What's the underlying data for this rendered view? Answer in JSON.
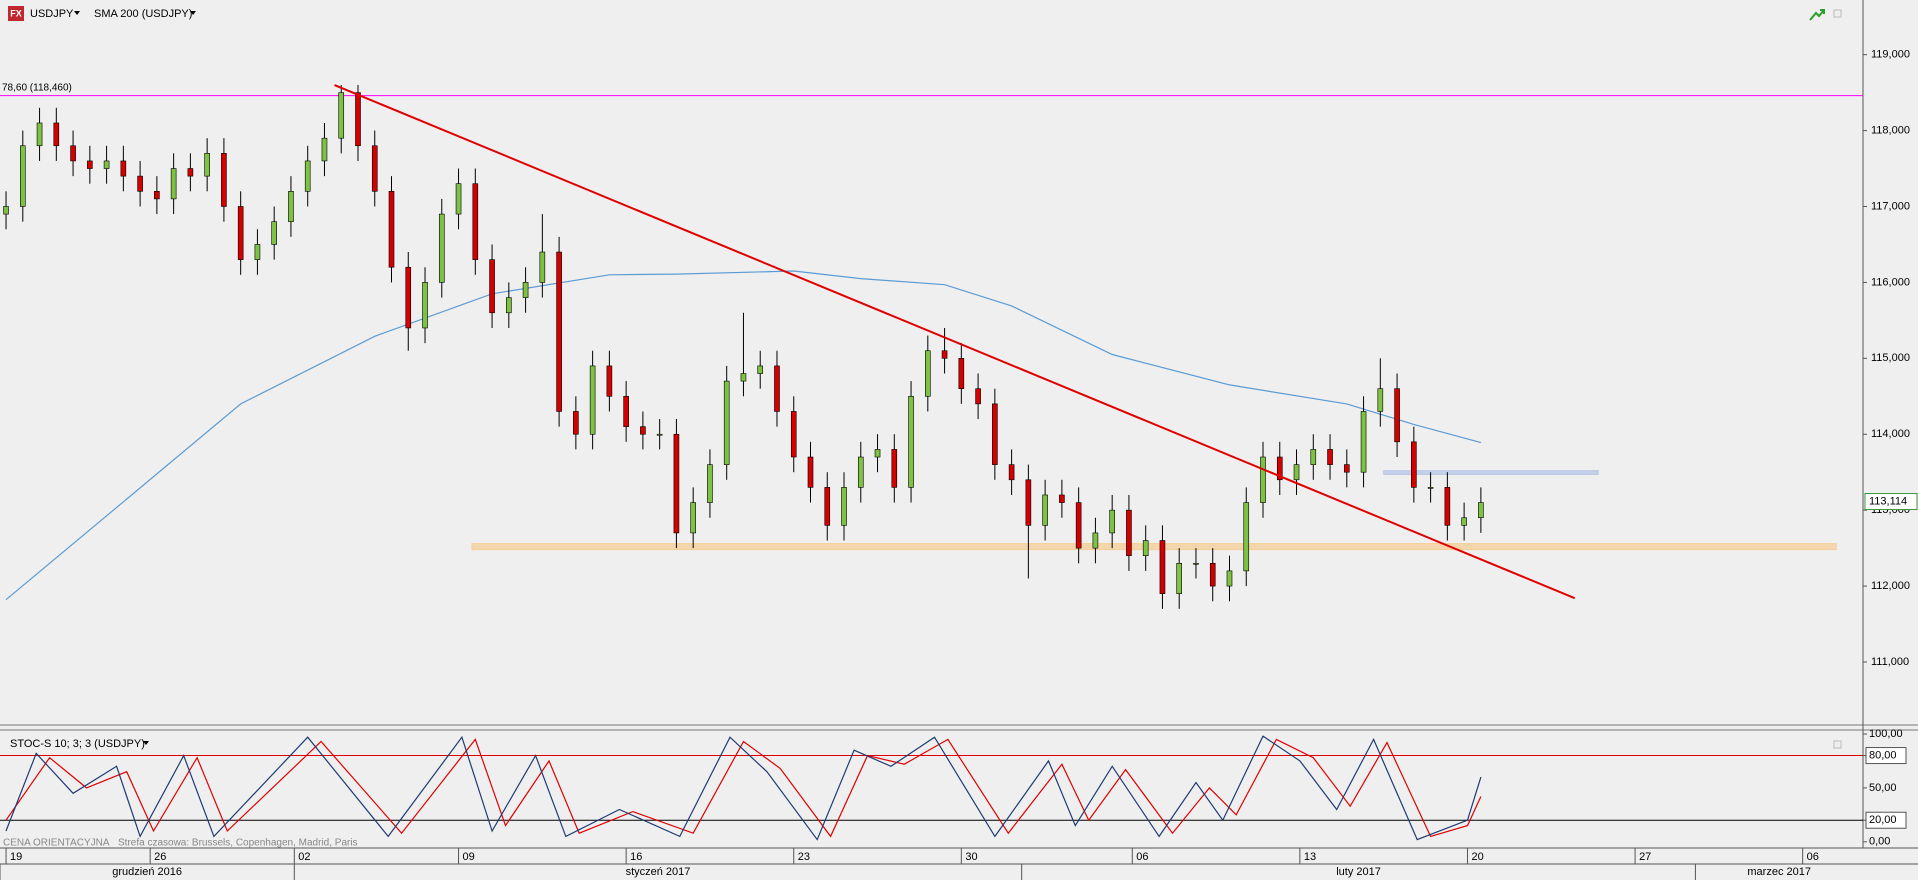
{
  "chart_data": [
    {
      "type": "candlestick",
      "title": "USDJPY",
      "x": [
        0,
        0.5,
        1,
        1.5,
        2,
        2.5,
        3,
        3.5,
        4,
        4.5,
        5,
        5.5,
        6,
        6.5,
        7,
        7.5,
        8,
        8.5,
        9,
        9.5,
        10,
        10.5,
        11,
        11.5,
        12,
        12.5,
        13,
        13.5,
        14,
        14.5,
        15,
        15.5,
        16,
        16.5,
        17,
        17.5,
        18,
        18.5,
        19,
        19.5,
        20,
        20.5,
        21,
        21.5,
        22,
        22.5,
        23,
        23.5,
        24,
        24.5,
        25,
        25.5,
        26,
        26.5,
        27,
        27.5,
        28,
        28.5,
        29,
        29.5,
        30,
        30.5,
        31,
        31.5,
        32,
        32.5,
        33,
        33.5,
        34,
        34.5,
        35,
        35.5,
        36,
        36.5,
        37,
        37.5,
        38,
        38.5,
        39,
        39.5,
        40,
        40.5,
        41,
        41.5,
        42,
        42.5,
        43,
        43.5,
        44
      ],
      "open": [
        116.9,
        117.0,
        117.8,
        118.1,
        117.8,
        117.6,
        117.5,
        117.6,
        117.4,
        117.2,
        117.1,
        117.5,
        117.4,
        117.7,
        117.0,
        116.3,
        116.5,
        116.8,
        117.2,
        117.6,
        117.9,
        118.5,
        117.8,
        117.2,
        116.2,
        115.4,
        116.0,
        116.9,
        117.3,
        116.3,
        115.6,
        115.8,
        116.0,
        116.4,
        114.3,
        114.0,
        114.9,
        114.5,
        114.1,
        114.0,
        114.0,
        112.7,
        113.1,
        113.6,
        114.7,
        114.8,
        114.9,
        114.3,
        113.7,
        113.3,
        112.8,
        113.3,
        113.7,
        113.8,
        113.3,
        114.5,
        115.1,
        115.0,
        114.6,
        114.4,
        113.6,
        113.4,
        112.8,
        113.2,
        113.1,
        112.5,
        112.7,
        113.0,
        112.4,
        112.6,
        111.9,
        112.3,
        112.3,
        112.0,
        112.2,
        113.1,
        113.7,
        113.4,
        113.6,
        113.8,
        113.6,
        113.5,
        114.3,
        114.6,
        113.9,
        113.3,
        113.3,
        112.8,
        112.9
      ],
      "high": [
        117.2,
        118.0,
        118.3,
        118.3,
        118.0,
        117.8,
        117.8,
        117.8,
        117.6,
        117.4,
        117.7,
        117.7,
        117.9,
        117.9,
        117.2,
        116.7,
        117.0,
        117.4,
        117.8,
        118.1,
        118.6,
        118.6,
        118.0,
        117.4,
        116.4,
        116.2,
        117.1,
        117.5,
        117.5,
        116.5,
        116.0,
        116.2,
        116.9,
        116.6,
        114.5,
        115.1,
        115.1,
        114.7,
        114.3,
        114.2,
        114.2,
        113.3,
        113.8,
        114.9,
        115.6,
        115.1,
        115.1,
        114.5,
        113.9,
        113.5,
        113.5,
        113.9,
        114.0,
        114.0,
        114.7,
        115.3,
        115.4,
        115.2,
        114.8,
        114.6,
        113.8,
        113.6,
        113.4,
        113.4,
        113.3,
        112.9,
        113.2,
        113.2,
        112.8,
        112.8,
        112.5,
        112.5,
        112.5,
        112.4,
        113.3,
        113.9,
        113.9,
        113.8,
        114.0,
        114.0,
        113.8,
        114.5,
        115.0,
        114.8,
        114.1,
        113.5,
        113.5,
        113.1,
        113.3
      ],
      "low": [
        116.7,
        116.8,
        117.6,
        117.6,
        117.4,
        117.3,
        117.3,
        117.2,
        117.0,
        116.9,
        116.9,
        117.2,
        117.2,
        116.8,
        116.1,
        116.1,
        116.3,
        116.6,
        117.0,
        117.4,
        117.7,
        117.6,
        117.0,
        116.0,
        115.1,
        115.2,
        115.8,
        116.7,
        116.1,
        115.4,
        115.4,
        115.6,
        115.8,
        114.1,
        113.8,
        113.8,
        114.3,
        113.9,
        113.8,
        113.8,
        112.5,
        112.5,
        112.9,
        113.4,
        114.5,
        114.6,
        114.1,
        113.5,
        113.1,
        112.6,
        112.6,
        113.1,
        113.5,
        113.1,
        113.1,
        114.3,
        114.8,
        114.4,
        114.2,
        113.4,
        113.2,
        112.1,
        112.6,
        112.9,
        112.3,
        112.3,
        112.5,
        112.2,
        112.2,
        111.7,
        111.7,
        112.1,
        111.8,
        111.8,
        112.0,
        112.9,
        113.2,
        113.2,
        113.4,
        113.4,
        113.3,
        113.3,
        114.1,
        113.7,
        113.1,
        113.1,
        112.6,
        112.6,
        112.7
      ],
      "close": [
        117.0,
        117.8,
        118.1,
        117.8,
        117.6,
        117.5,
        117.6,
        117.4,
        117.2,
        117.1,
        117.5,
        117.4,
        117.7,
        117.0,
        116.3,
        116.5,
        116.8,
        117.2,
        117.6,
        117.9,
        118.5,
        117.8,
        117.2,
        116.2,
        115.4,
        116.0,
        116.9,
        117.3,
        116.3,
        115.6,
        115.8,
        116.0,
        116.4,
        114.3,
        114.0,
        114.9,
        114.5,
        114.1,
        114.0,
        114.0,
        112.7,
        113.1,
        113.6,
        114.7,
        114.8,
        114.9,
        114.3,
        113.7,
        113.3,
        112.8,
        113.3,
        113.7,
        113.8,
        113.3,
        114.5,
        115.1,
        115.0,
        114.6,
        114.4,
        113.6,
        113.4,
        112.8,
        113.2,
        113.1,
        112.5,
        112.7,
        113.0,
        112.4,
        112.6,
        111.9,
        112.3,
        112.3,
        112.0,
        112.2,
        113.1,
        113.7,
        113.4,
        113.6,
        113.8,
        113.6,
        113.5,
        114.3,
        114.6,
        113.9,
        113.3,
        113.3,
        112.8,
        112.9,
        113.1
      ],
      "colors": {
        "up": "#7dc243",
        "down": "#d40000"
      },
      "sma": {
        "name": "SMA 200 (USDJPY)",
        "color": "#5b9bd5",
        "x": [
          0,
          3.5,
          7,
          11,
          14.5,
          18,
          20,
          23.5,
          25.5,
          28,
          30,
          33,
          36.5,
          40,
          42,
          44
        ],
        "values": [
          111.82,
          113.11,
          114.4,
          115.29,
          115.85,
          116.1,
          116.11,
          116.15,
          116.05,
          115.97,
          115.69,
          115.05,
          114.65,
          114.4,
          114.13,
          113.89
        ]
      },
      "last_price": {
        "value": 113.114,
        "label": "113,114"
      },
      "fib_level": {
        "value": 118.46,
        "label": "78,60 (118,460)",
        "color": "#ff00ff"
      },
      "trendline": {
        "x": [
          9.8,
          46.8
        ],
        "y": [
          118.6,
          111.84
        ],
        "color": "#e00000"
      },
      "zones": [
        {
          "x": [
            13.9,
            54.6
          ],
          "y": [
            112.48,
            112.56
          ],
          "color": "#f5cf9b"
        },
        {
          "x": [
            41.1,
            47.5
          ],
          "y": [
            113.47,
            113.52
          ],
          "color": "#b8c8e8"
        }
      ],
      "xlim": [
        -0.18,
        55.4
      ],
      "ylim": [
        110.17,
        119.72
      ],
      "yticks": [
        {
          "value": 111,
          "label": "111,000"
        },
        {
          "value": 112,
          "label": "112,000"
        },
        {
          "value": 113,
          "label": "113,000"
        },
        {
          "value": 114,
          "label": "114,000"
        },
        {
          "value": 115,
          "label": "115,000"
        },
        {
          "value": 116,
          "label": "116,000"
        },
        {
          "value": 117,
          "label": "117,000"
        },
        {
          "value": 118,
          "label": "118,000"
        },
        {
          "value": 119,
          "label": "119,000"
        }
      ],
      "xticks": [
        {
          "value": 0,
          "label": "19"
        },
        {
          "value": 4.3,
          "label": "26"
        },
        {
          "value": 8.6,
          "label": "02"
        },
        {
          "value": 13.5,
          "label": "09"
        },
        {
          "value": 18.5,
          "label": "16"
        },
        {
          "value": 23.5,
          "label": "23"
        },
        {
          "value": 28.5,
          "label": "30"
        },
        {
          "value": 33.6,
          "label": "06"
        },
        {
          "value": 38.6,
          "label": "13"
        },
        {
          "value": 43.6,
          "label": "20"
        },
        {
          "value": 48.6,
          "label": "27"
        },
        {
          "value": 53.6,
          "label": "06"
        }
      ],
      "months": [
        {
          "label": "grudzień 2016",
          "start": -0.18
        },
        {
          "label": "styczeń 2017",
          "start": 8.6
        },
        {
          "label": "luty 2017",
          "start": 30.3
        },
        {
          "label": "marzec 2017",
          "start": 50.4
        }
      ],
      "footer": [
        "CENA ORIENTACYJNA",
        "Strefa czasowa: Brussels, Copenhagen, Madrid, Paris"
      ]
    },
    {
      "type": "line",
      "title": "STOC-S 10; 3; 3 (USDJPY)",
      "series": [
        {
          "color": "#1f3b73",
          "x": [
            0,
            0.9,
            2,
            3.3,
            4,
            5.3,
            6.2,
            9,
            11.4,
            13.6,
            14.5,
            15.8,
            16.7,
            18.3,
            20.1,
            21.6,
            22.7,
            24.2,
            25.3,
            26.4,
            27.7,
            29.5,
            31.1,
            31.9,
            33,
            34.4,
            35.5,
            36.3,
            37.5,
            38.6,
            39.7,
            40.8,
            42.1,
            43.6,
            44
          ],
          "values": [
            10,
            82,
            45,
            70,
            5,
            80,
            5,
            97,
            5,
            97,
            10,
            80,
            5,
            30,
            5,
            97,
            65,
            2,
            85,
            70,
            97,
            5,
            75,
            15,
            70,
            5,
            55,
            20,
            98,
            75,
            30,
            95,
            2,
            20,
            60
          ]
        },
        {
          "color": "#e00000",
          "x": [
            0,
            1.3,
            2.4,
            3.6,
            4.4,
            5.7,
            6.6,
            9.4,
            11.8,
            14,
            14.9,
            16.2,
            17.1,
            18.7,
            20.5,
            22,
            23.1,
            24.6,
            25.7,
            26.8,
            28.1,
            29.9,
            31.5,
            32.3,
            33.4,
            34.8,
            35.9,
            36.7,
            37.9,
            39,
            40.1,
            41.2,
            42.5,
            43.6,
            44
          ],
          "values": [
            20,
            78,
            50,
            65,
            10,
            78,
            10,
            93,
            8,
            95,
            15,
            75,
            8,
            28,
            8,
            93,
            68,
            5,
            80,
            72,
            95,
            8,
            72,
            20,
            67,
            8,
            50,
            25,
            95,
            78,
            33,
            92,
            5,
            15,
            42
          ]
        }
      ],
      "level_lines": [
        {
          "value": 80,
          "color": "#e00000"
        },
        {
          "value": 20,
          "color": "#000000"
        }
      ],
      "ylim": [
        -5.75,
        103.7
      ],
      "yticks": [
        {
          "value": 0,
          "label": "0,00"
        },
        {
          "value": 20,
          "label": "20,00"
        },
        {
          "value": 50,
          "label": "50,00"
        },
        {
          "value": 80,
          "label": "80,00"
        },
        {
          "value": 100,
          "label": "100,00"
        }
      ]
    }
  ]
}
